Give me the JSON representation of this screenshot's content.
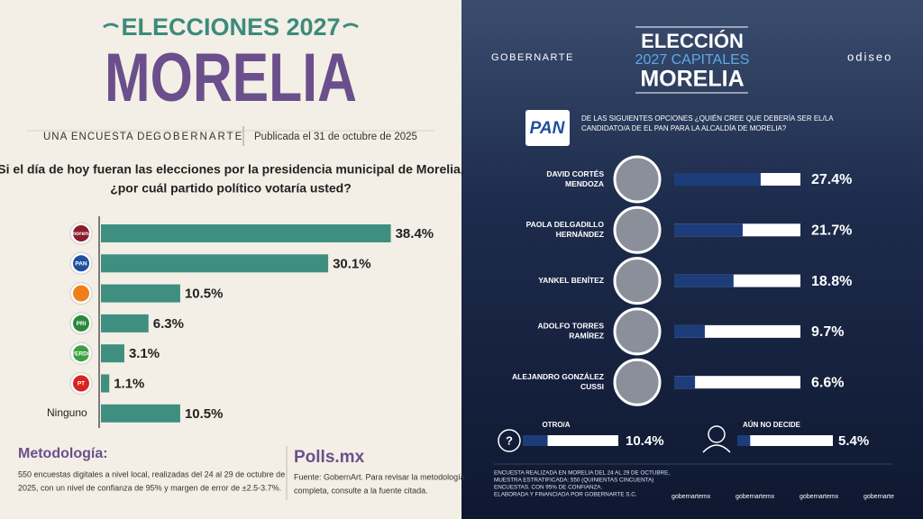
{
  "chart_data": [
    {
      "type": "bar",
      "supertitle": "ELECCIONES 2027",
      "title": "MORELIA",
      "byline": "UNA ENCUESTA DE:",
      "brand": "GOBERNARTE",
      "date": "Publicada el 31 de octubre de 2025",
      "question": [
        "Si el día de hoy fueran las elecciones por la presidencia municipal de Morelia,",
        "¿por cuál partido político votaría usted?"
      ],
      "categories": [
        "morena",
        "PAN",
        null,
        "PRI",
        "VERDE",
        "PT",
        "Ninguno"
      ],
      "logo_colors": [
        "#8b1c2a",
        "#1e4fa0",
        "#f07f1a",
        "#2a8a3a",
        "#3aa043",
        "#d6261e",
        null
      ],
      "values": [
        38.4,
        30.1,
        10.5,
        6.3,
        3.1,
        1.1,
        10.5
      ],
      "value_labels": [
        "38.4%",
        "30.1%",
        "10.5%",
        "6.3%",
        "3.1%",
        "1.1%",
        "10.5%"
      ],
      "color": "#3f8f80",
      "xlim": [
        0,
        40
      ],
      "methodology_title": "Metodología:",
      "methodology": [
        "550 encuestas digitales a nivel local, realizadas del 24 al 29 de octubre de",
        "2025, con un nivel de confianza de 95% y margen de error de ±2.5-3.7%."
      ],
      "source_logo": "Polls.mx",
      "source": [
        "Fuente: GobernArt. Para revisar la metodología",
        "completa, consulte a la fuente citada."
      ]
    },
    {
      "type": "bar",
      "brand": "GOBERNARTE",
      "partner": "odiseo",
      "title": [
        "ELECCIÓN",
        "2027 CAPITALES",
        "MORELIA"
      ],
      "party": "PAN",
      "question": [
        "DE LAS SIGUIENTES OPCIONES ¿QUIÉN CREE QUE DEBERÍA SER EL/LA",
        "CANDIDATO/A DE EL PAN PARA LA ALCALDÍA DE MORELIA?"
      ],
      "categories": [
        [
          "DAVID CORTÉS",
          "MENDOZA"
        ],
        [
          "PAOLA DELGADILLO",
          "HERNÁNDEZ"
        ],
        [
          "YANKEL BENÍTEZ"
        ],
        [
          "ADOLFO TORRES",
          "RAMÍREZ"
        ],
        [
          "ALEJANDRO GONZÁLEZ",
          "CUSSI"
        ]
      ],
      "values": [
        27.4,
        21.7,
        18.8,
        9.7,
        6.6
      ],
      "value_labels": [
        "27.4%",
        "21.7%",
        "18.8%",
        "9.7%",
        "6.6%"
      ],
      "color": "#1c3d7a",
      "xlim": [
        0,
        40
      ],
      "notes": [
        "ENCUESTA REALIZADA EN MORELIA DEL 24 AL 29 DE OCTUBRE,",
        "MUESTRA ESTRATIFICADA: 550 (QUINIENTAS CINCUENTA)",
        "ENCUESTAS. CON 95% DE CONFIANZA.",
        "ELABORADA Y FINANCIADA POR GOBERNARTE S.C."
      ],
      "socials": [
        "gobernartemx",
        "gobernartemx",
        "gobernartemx",
        "gobernarte"
      ]
    },
    {
      "type": "bar",
      "categories": [
        "OTRO/A",
        "AÚN NO DECIDE"
      ],
      "values": [
        10.4,
        5.4
      ],
      "value_labels": [
        "10.4%",
        "5.4%"
      ],
      "color": "#1c3d7a",
      "xlim": [
        0,
        40
      ]
    }
  ]
}
